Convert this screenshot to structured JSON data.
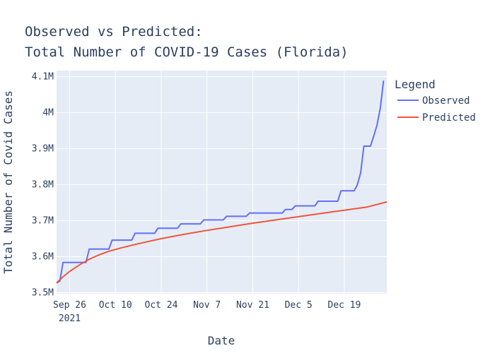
{
  "chart_data": {
    "type": "line",
    "title_line1": "Observed vs Predicted:",
    "title_line2": "Total Number of COVID-19 Cases (Florida)",
    "xlabel": "Date",
    "ylabel": "Total Number of Covid Cases",
    "x_tick_labels": [
      "Sep 26",
      "Oct 10",
      "Oct 24",
      "Nov 7",
      "Nov 21",
      "Dec 5",
      "Dec 19"
    ],
    "x_tick_dates": [
      "2021-09-26",
      "2021-10-10",
      "2021-10-24",
      "2021-11-07",
      "2021-11-21",
      "2021-12-05",
      "2021-12-19"
    ],
    "x_year_label": "2021",
    "xlim": [
      "2021-09-22",
      "2022-01-01"
    ],
    "y_ticks": [
      3500000,
      3600000,
      3700000,
      3800000,
      3900000,
      4000000,
      4100000
    ],
    "y_tick_labels": [
      "3.5M",
      "3.6M",
      "3.7M",
      "3.8M",
      "3.9M",
      "4M",
      "4.1M"
    ],
    "ylim": [
      3497000,
      4117000
    ],
    "grid": true,
    "legend_title": "Legend",
    "legend_position": "right",
    "series": [
      {
        "name": "Observed",
        "color": "#636efa",
        "points": [
          [
            "2021-09-22",
            3527000
          ],
          [
            "2021-09-23",
            3532000
          ],
          [
            "2021-09-24",
            3584000
          ],
          [
            "2021-10-01",
            3584000
          ],
          [
            "2021-10-02",
            3621000
          ],
          [
            "2021-10-08",
            3621000
          ],
          [
            "2021-10-09",
            3646000
          ],
          [
            "2021-10-15",
            3646000
          ],
          [
            "2021-10-16",
            3665000
          ],
          [
            "2021-10-22",
            3665000
          ],
          [
            "2021-10-23",
            3679000
          ],
          [
            "2021-10-29",
            3679000
          ],
          [
            "2021-10-30",
            3691000
          ],
          [
            "2021-11-05",
            3691000
          ],
          [
            "2021-11-06",
            3702000
          ],
          [
            "2021-11-12",
            3702000
          ],
          [
            "2021-11-13",
            3712000
          ],
          [
            "2021-11-19",
            3712000
          ],
          [
            "2021-11-20",
            3721000
          ],
          [
            "2021-11-30",
            3721000
          ],
          [
            "2021-12-01",
            3731000
          ],
          [
            "2021-12-03",
            3731000
          ],
          [
            "2021-12-04",
            3741000
          ],
          [
            "2021-12-10",
            3741000
          ],
          [
            "2021-12-11",
            3754000
          ],
          [
            "2021-12-17",
            3754000
          ],
          [
            "2021-12-18",
            3783000
          ],
          [
            "2021-12-22",
            3783000
          ],
          [
            "2021-12-23",
            3800000
          ],
          [
            "2021-12-24",
            3833000
          ],
          [
            "2021-12-25",
            3907000
          ],
          [
            "2021-12-27",
            3907000
          ],
          [
            "2021-12-28",
            3935000
          ],
          [
            "2021-12-29",
            3965000
          ],
          [
            "2021-12-30",
            4013000
          ],
          [
            "2021-12-31",
            4089000
          ]
        ]
      },
      {
        "name": "Predicted",
        "color": "#ef553b",
        "points": [
          [
            "2021-09-22",
            3527000
          ],
          [
            "2021-09-24",
            3544000
          ],
          [
            "2021-09-26",
            3559000
          ],
          [
            "2021-09-29",
            3577000
          ],
          [
            "2021-10-02",
            3593000
          ],
          [
            "2021-10-05",
            3605000
          ],
          [
            "2021-10-08",
            3615000
          ],
          [
            "2021-10-12",
            3625000
          ],
          [
            "2021-10-17",
            3636000
          ],
          [
            "2021-10-24",
            3650000
          ],
          [
            "2021-10-31",
            3662000
          ],
          [
            "2021-11-07",
            3673000
          ],
          [
            "2021-11-14",
            3683000
          ],
          [
            "2021-11-21",
            3693000
          ],
          [
            "2021-11-28",
            3702000
          ],
          [
            "2021-12-05",
            3711000
          ],
          [
            "2021-12-12",
            3720000
          ],
          [
            "2021-12-19",
            3729000
          ],
          [
            "2021-12-26",
            3738000
          ],
          [
            "2022-01-01",
            3752000
          ]
        ]
      }
    ]
  }
}
